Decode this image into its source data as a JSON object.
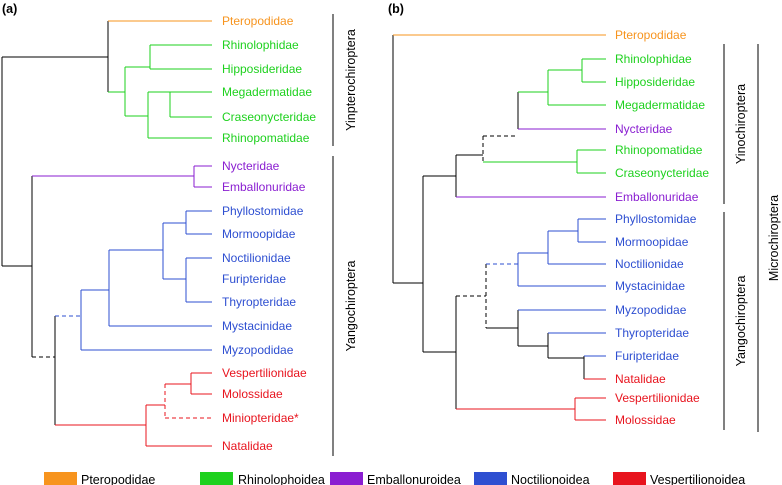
{
  "colors": {
    "Pteropodidae": "#F7941E",
    "Rhinolophoidea": "#1ED11E",
    "Emballonuroidea": "#8A1ED1",
    "Noctilionoidea": "#2E4FD1",
    "Vespertilionoidea": "#E8141E",
    "black": "#000000"
  },
  "panel_a": {
    "label": "(a)",
    "taxa": {
      "pteropodidae": "Pteropodidae",
      "rhinolophidae": "Rhinolophidae",
      "hipposideridae": "Hipposideridae",
      "megadermatidae": "Megadermatidae",
      "craseonycteridae": "Craseonycteridae",
      "rhinopomatidae": "Rhinopomatidae",
      "nycteridae": "Nycteridae",
      "emballonuridae": "Emballonuridae",
      "phyllostomidae": "Phyllostomidae",
      "mormoopidae": "Mormoopidae",
      "noctilionidae": "Noctilionidae",
      "furipteridae": "Furipteridae",
      "thyropteridae": "Thyropteridae",
      "mystacinidae": "Mystacinidae",
      "myzopodidae": "Myzopodidae",
      "vespertilionidae": "Vespertilionidae",
      "molossidae": "Molossidae",
      "miniopteridae": "Miniopteridae*",
      "natalidae": "Natalidae"
    },
    "groups": {
      "yinpterochiroptera": "Yinpterochiroptera",
      "yangochiroptera": "Yangochiroptera"
    }
  },
  "panel_b": {
    "label": "(b)",
    "taxa": {
      "pteropodidae": "Pteropodidae",
      "rhinolophidae": "Rhinolophidae",
      "hipposideridae": "Hipposideridae",
      "megadermatidae": "Megadermatidae",
      "nycteridae": "Nycteridae",
      "rhinopomatidae": "Rhinopomatidae",
      "craseonycteridae": "Craseonycteridae",
      "emballonuridae": "Emballonuridae",
      "phyllostomidae": "Phyllostomidae",
      "mormoopidae": "Mormoopidae",
      "noctilionidae": "Noctilionidae",
      "mystacinidae": "Mystacinidae",
      "myzopodidae": "Myzopodidae",
      "thyropteridae": "Thyropteridae",
      "furipteridae": "Furipteridae",
      "natalidae": "Natalidae",
      "vespertilionidae": "Vespertilionidae",
      "molossidae": "Molossidae"
    },
    "groups": {
      "yinochiroptera": "Yinochiroptera",
      "yangochiroptera": "Yangochiroptera",
      "microchiroptera": "Microchiroptera"
    }
  },
  "legend": {
    "items": [
      {
        "label": "Pteropodidae",
        "color": "#F7941E"
      },
      {
        "label": "Rhinolophoidea",
        "color": "#1ED11E"
      },
      {
        "label": "Emballonuroidea",
        "color": "#8A1ED1"
      },
      {
        "label": "Noctilionoidea",
        "color": "#2E4FD1"
      },
      {
        "label": "Vespertilionoidea",
        "color": "#E8141E"
      }
    ]
  }
}
